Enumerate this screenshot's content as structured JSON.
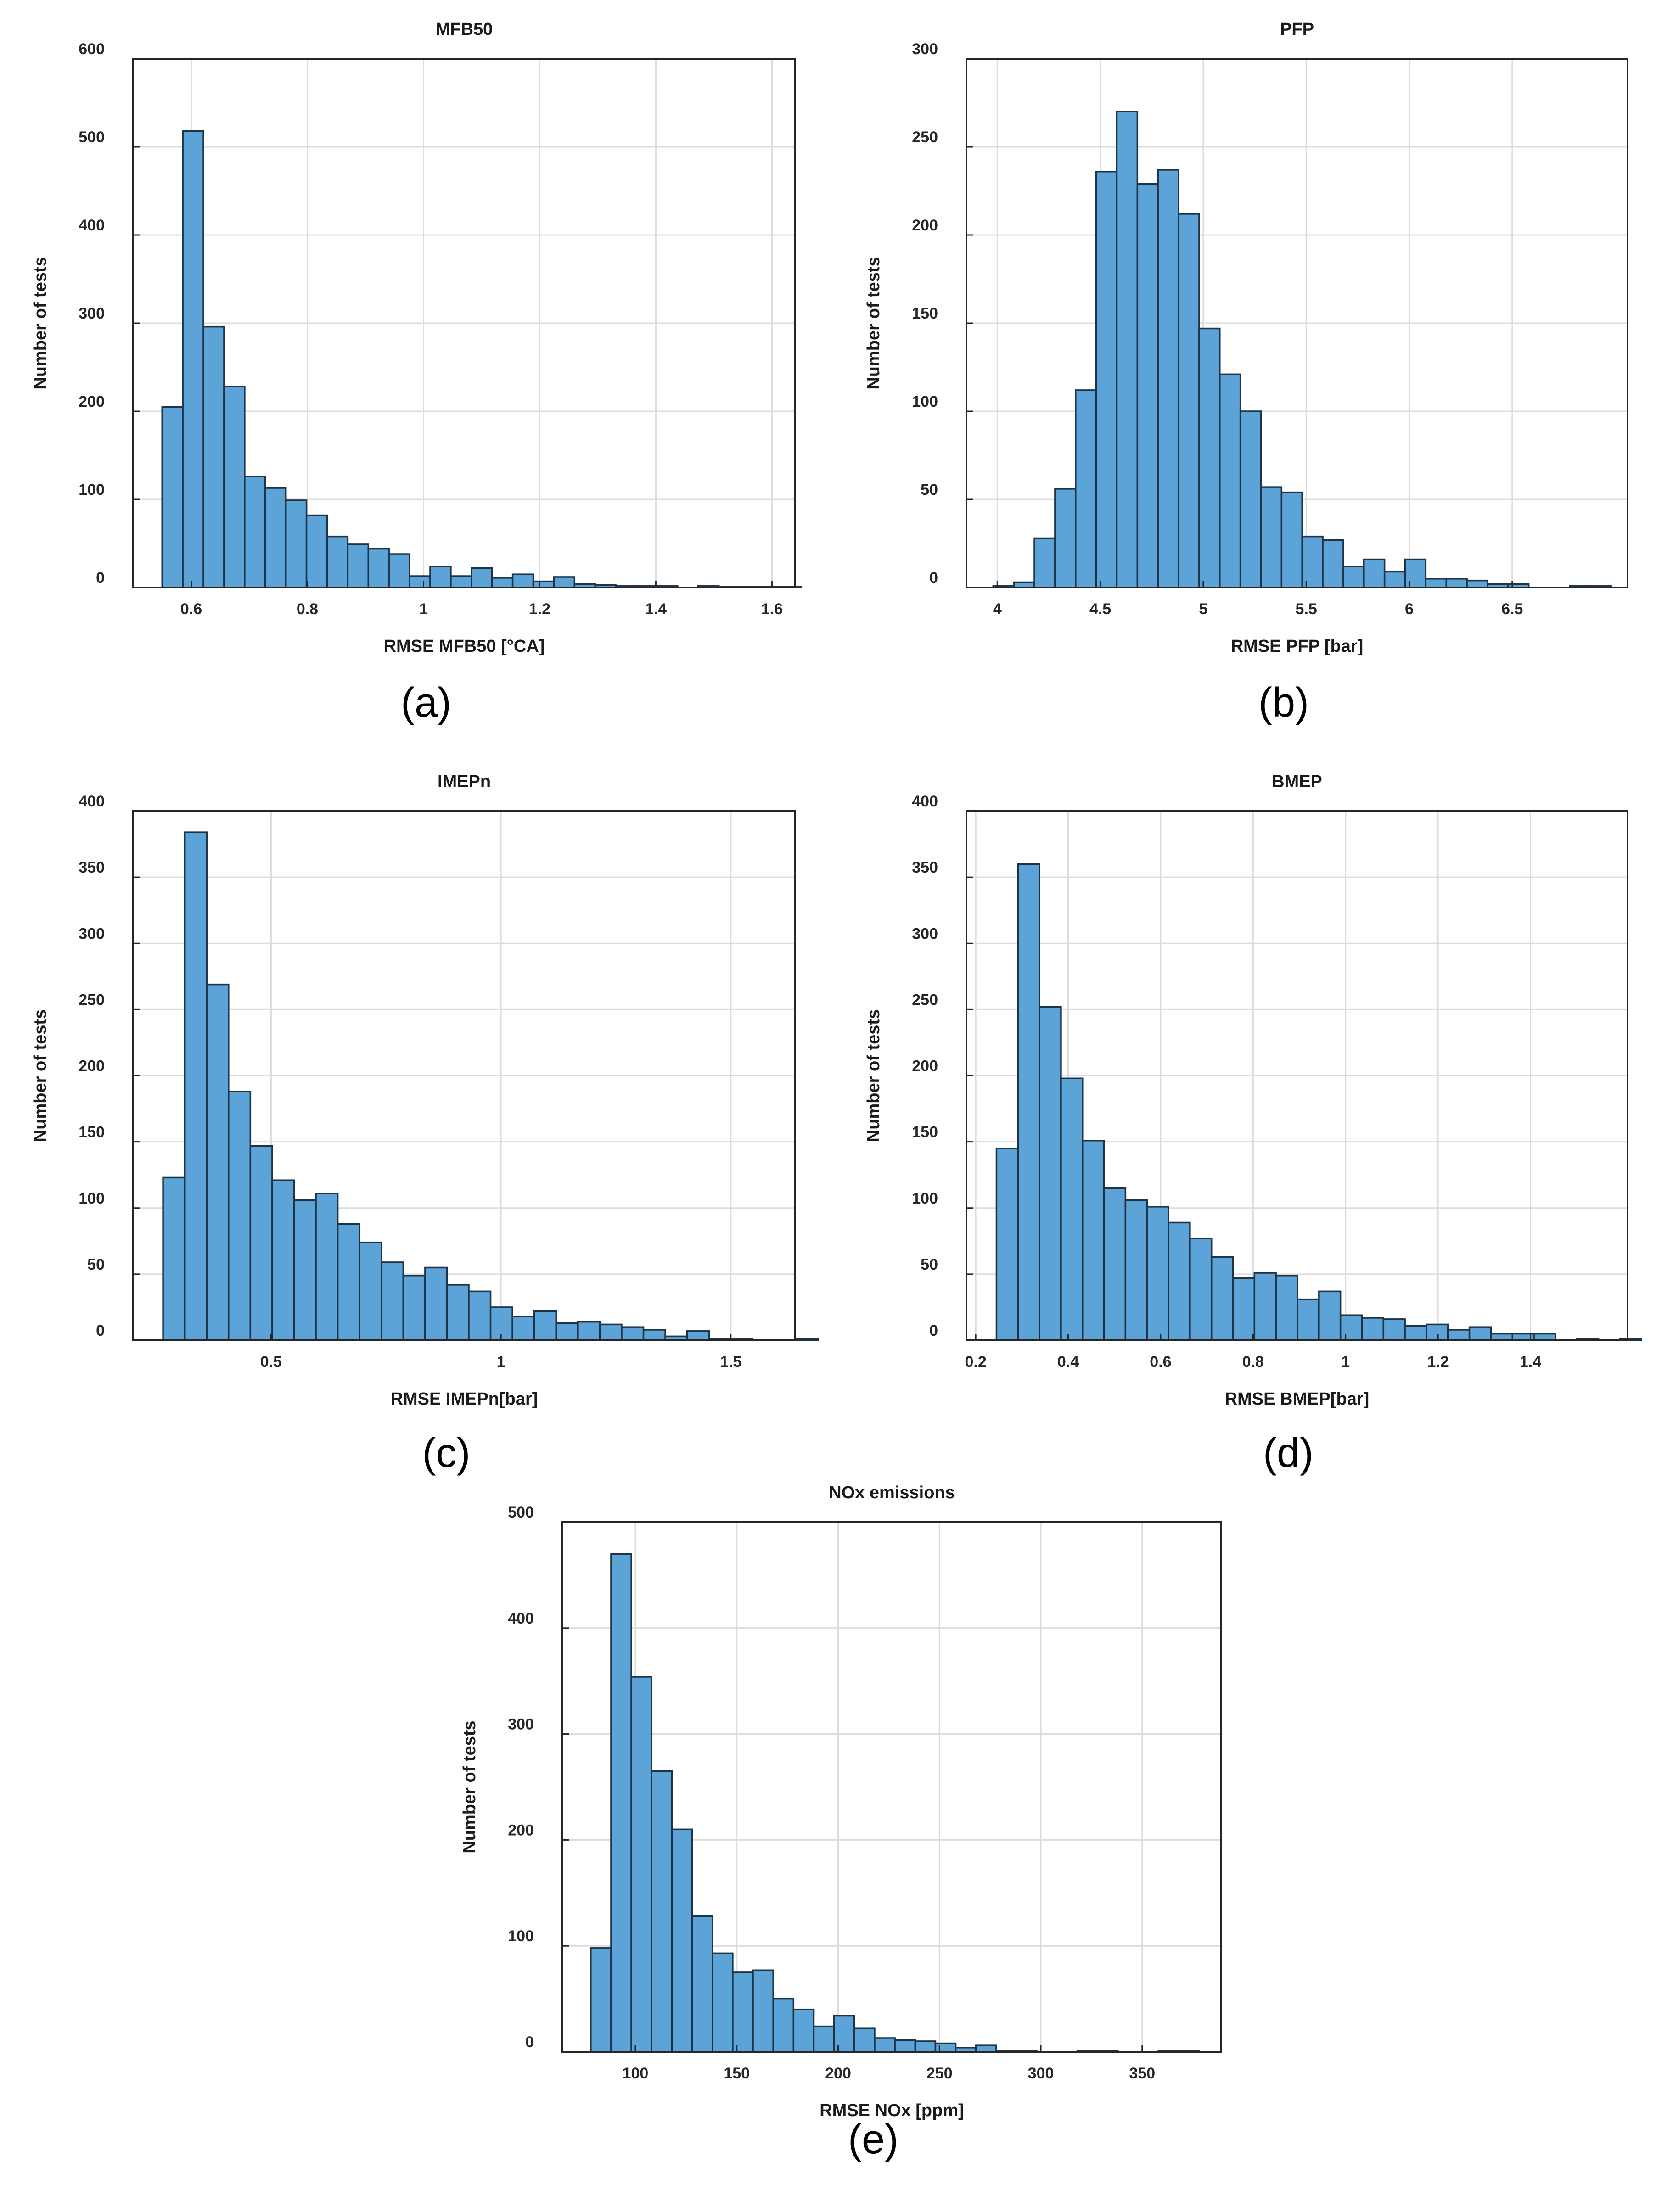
{
  "figure": {
    "bar_color": "#5ca4d8",
    "bar_edge": "#1f3347",
    "grid_color": "#dcdcdc",
    "axis_color": "#262626"
  },
  "chart_data": [
    {
      "type": "bar",
      "id": "mfb50",
      "title": "MFB50",
      "xlabel": "RMSE MFB50 [°CA]",
      "ylabel": "Number of tests",
      "caption": "(a)",
      "xlim": [
        0.5,
        1.64
      ],
      "ylim": [
        0,
        600
      ],
      "xticks": [
        0.6,
        0.8,
        1,
        1.2,
        1.4,
        1.6
      ],
      "xtick_labels": [
        "0.6",
        "0.8",
        "1",
        "1.2",
        "1.4",
        "1.6"
      ],
      "yticks": [
        0,
        100,
        200,
        300,
        400,
        500,
        600
      ],
      "ytick_labels": [
        "0",
        "100",
        "200",
        "300",
        "400",
        "500",
        "600"
      ],
      "bin_start": 0.55,
      "bin_width": 0.0355,
      "values": [
        205,
        518,
        296,
        228,
        126,
        113,
        99,
        82,
        58,
        49,
        44,
        38,
        13,
        24,
        13,
        22,
        11,
        15,
        7,
        12,
        4,
        3,
        2,
        2,
        2,
        0,
        2,
        1,
        1,
        1,
        1
      ]
    },
    {
      "type": "bar",
      "id": "pfp",
      "title": "PFP",
      "xlabel": "RMSE PFP [bar]",
      "ylabel": "Number of tests",
      "caption": "(b)",
      "xlim": [
        3.85,
        7.06
      ],
      "ylim": [
        0,
        300
      ],
      "xticks": [
        4,
        4.5,
        5,
        5.5,
        6,
        6.5
      ],
      "xtick_labels": [
        "4",
        "4.5",
        "5",
        "5.5",
        "6",
        "6.5"
      ],
      "yticks": [
        0,
        50,
        100,
        150,
        200,
        250,
        300
      ],
      "ytick_labels": [
        "0",
        "50",
        "100",
        "150",
        "200",
        "250",
        "300"
      ],
      "bin_start": 3.98,
      "bin_width": 0.1,
      "values": [
        1,
        3,
        28,
        56,
        112,
        236,
        270,
        229,
        237,
        212,
        147,
        121,
        100,
        57,
        54,
        29,
        27,
        12,
        16,
        9,
        16,
        5,
        5,
        4,
        2,
        2,
        0,
        0,
        1,
        1
      ]
    },
    {
      "type": "bar",
      "id": "imepn",
      "title": "IMEPn",
      "xlabel": "RMSE IMEPn[bar]",
      "ylabel": "Number of tests",
      "caption": "(c)",
      "xlim": [
        0.2,
        1.64
      ],
      "ylim": [
        0,
        400
      ],
      "xticks": [
        0.5,
        1,
        1.5
      ],
      "xtick_labels": [
        "0.5",
        "1",
        "1.5"
      ],
      "yticks": [
        0,
        50,
        100,
        150,
        200,
        250,
        300,
        350,
        400
      ],
      "ytick_labels": [
        "0",
        "50",
        "100",
        "150",
        "200",
        "250",
        "300",
        "350",
        "400"
      ],
      "bin_start": 0.265,
      "bin_width": 0.0475,
      "values": [
        123,
        384,
        269,
        188,
        147,
        121,
        106,
        111,
        88,
        74,
        59,
        49,
        55,
        42,
        37,
        25,
        18,
        22,
        13,
        14,
        12,
        10,
        8,
        3,
        7,
        1,
        1,
        0,
        0,
        1
      ]
    },
    {
      "type": "bar",
      "id": "bmep",
      "title": "BMEP",
      "xlabel": "RMSE BMEP[bar]",
      "ylabel": "Number of tests",
      "caption": "(d)",
      "xlim": [
        0.18,
        1.61
      ],
      "ylim": [
        0,
        400
      ],
      "xticks": [
        0.2,
        0.4,
        0.6,
        0.8,
        1,
        1.2,
        1.4
      ],
      "xtick_labels": [
        "0.2",
        "0.4",
        "0.6",
        "0.8",
        "1",
        "1.2",
        "1.4"
      ],
      "yticks": [
        0,
        50,
        100,
        150,
        200,
        250,
        300,
        350,
        400
      ],
      "ytick_labels": [
        "0",
        "50",
        "100",
        "150",
        "200",
        "250",
        "300",
        "350",
        "400"
      ],
      "bin_start": 0.245,
      "bin_width": 0.0465,
      "values": [
        145,
        360,
        252,
        198,
        151,
        115,
        106,
        101,
        89,
        77,
        63,
        47,
        51,
        49,
        31,
        37,
        19,
        17,
        16,
        11,
        12,
        8,
        10,
        5,
        5,
        5,
        0,
        1,
        0,
        1
      ]
    },
    {
      "type": "bar",
      "id": "nox",
      "title": "NOx emissions",
      "xlabel": "RMSE NOx [ppm]",
      "ylabel": "Number of tests",
      "caption": "(e)",
      "xlim": [
        64,
        389
      ],
      "ylim": [
        0,
        500
      ],
      "xticks": [
        100,
        150,
        200,
        250,
        300,
        350
      ],
      "xtick_labels": [
        "100",
        "150",
        "200",
        "250",
        "300",
        "350"
      ],
      "yticks": [
        0,
        100,
        200,
        300,
        400,
        500
      ],
      "ytick_labels": [
        "0",
        "100",
        "200",
        "300",
        "400",
        "500"
      ],
      "bin_start": 78,
      "bin_width": 10,
      "values": [
        98,
        470,
        354,
        265,
        210,
        128,
        93,
        75,
        77,
        50,
        40,
        24,
        34,
        22,
        13,
        11,
        10,
        8,
        4,
        6,
        1,
        1,
        0,
        0,
        1,
        1,
        0,
        0,
        1,
        1
      ]
    }
  ]
}
